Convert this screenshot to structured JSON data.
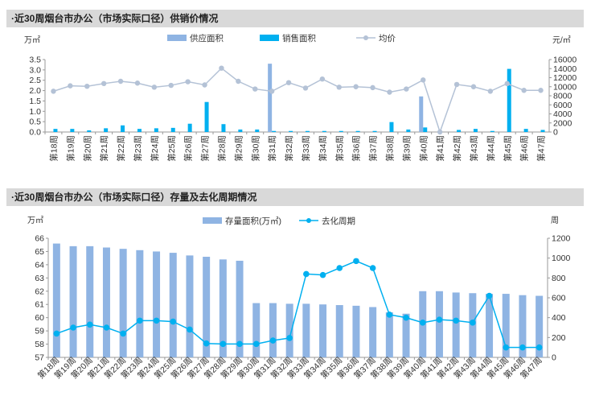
{
  "chart_data": [
    {
      "type": "bar",
      "title": "·近30周烟台市办公（市场实际口径）供销价情况",
      "y_left_label": "万㎡",
      "y_right_label": "元/㎡",
      "ylim_left": [
        0,
        3.5
      ],
      "ylim_right": [
        0,
        16000
      ],
      "yticks_left": [
        "0.0",
        "0.5",
        "1.0",
        "1.5",
        "2.0",
        "2.5",
        "3.0",
        "3.5"
      ],
      "yticks_right": [
        "0",
        "2000",
        "4000",
        "6000",
        "8000",
        "10000",
        "12000",
        "14000",
        "16000"
      ],
      "legend_position": "top",
      "categories": [
        "第18周",
        "第19周",
        "第20周",
        "第21周",
        "第22周",
        "第23周",
        "第24周",
        "第25周",
        "第26周",
        "第27周",
        "第28周",
        "第29周",
        "第30周",
        "第31周",
        "第32周",
        "第33周",
        "第34周",
        "第35周",
        "第36周",
        "第37周",
        "第38周",
        "第39周",
        "第40周",
        "第41周",
        "第42周",
        "第43周",
        "第44周",
        "第45周",
        "第46周",
        "第47周"
      ],
      "series": [
        {
          "name": "供应面积",
          "type": "bar",
          "axis": "left",
          "color": "#8fb4e3",
          "values": [
            0,
            0,
            0,
            0,
            0,
            0,
            0,
            0,
            0,
            0,
            0,
            0,
            0,
            3.3,
            0,
            0,
            0,
            0,
            0,
            0,
            0,
            0,
            1.72,
            0,
            0,
            0,
            0,
            0,
            0,
            0
          ]
        },
        {
          "name": "销售面积",
          "type": "bar",
          "axis": "left",
          "color": "#00b0f0",
          "values": [
            0.15,
            0.15,
            0.08,
            0.18,
            0.32,
            0.15,
            0.18,
            0.2,
            0.4,
            1.45,
            0.38,
            0.12,
            0.12,
            0.05,
            0.05,
            0.05,
            0.05,
            0.05,
            0.05,
            0.05,
            0.48,
            0.12,
            0.22,
            0,
            0.1,
            0.15,
            0.05,
            3.05,
            0.15,
            0.1
          ]
        },
        {
          "name": "均价",
          "type": "line",
          "axis": "right",
          "color": "#b4c2d6",
          "values": [
            9000,
            10200,
            10100,
            10700,
            11200,
            10800,
            9900,
            10300,
            11100,
            10400,
            14100,
            11200,
            9500,
            9000,
            10900,
            9700,
            11700,
            9900,
            10000,
            9800,
            8800,
            9500,
            11500,
            0,
            10500,
            10000,
            9000,
            10700,
            9200,
            9200
          ]
        }
      ]
    },
    {
      "type": "bar",
      "title": "·近30周烟台市办公（市场实际口径）存量及去化周期情况",
      "y_left_label": "万㎡",
      "y_right_label": "周",
      "ylim_left": [
        57,
        66
      ],
      "ylim_right": [
        0,
        1200
      ],
      "yticks_left": [
        "57",
        "58",
        "59",
        "60",
        "61",
        "62",
        "63",
        "64",
        "65",
        "66"
      ],
      "yticks_right": [
        "0",
        "200",
        "400",
        "600",
        "800",
        "1000",
        "1200"
      ],
      "legend_position": "top",
      "categories": [
        "第18周",
        "第19周",
        "第20周",
        "第21周",
        "第22周",
        "第23周",
        "第24周",
        "第25周",
        "第26周",
        "第27周",
        "第28周",
        "第29周",
        "第30周",
        "第31周",
        "第32周",
        "第33周",
        "第34周",
        "第35周",
        "第36周",
        "第37周",
        "第38周",
        "第39周",
        "第40周",
        "第41周",
        "第42周",
        "第43周",
        "第44周",
        "第45周",
        "第46周",
        "第47周"
      ],
      "series": [
        {
          "name": "存量面积(万㎡)",
          "type": "bar",
          "axis": "left",
          "color": "#8fb4e3",
          "values": [
            65.6,
            65.4,
            65.4,
            65.3,
            65.2,
            65.1,
            65.0,
            64.9,
            64.7,
            64.6,
            64.4,
            64.3,
            61.1,
            61.1,
            61.05,
            61.05,
            61.0,
            60.95,
            60.9,
            60.8,
            60.4,
            60.3,
            62.0,
            62.0,
            61.9,
            61.85,
            61.8,
            61.8,
            61.7,
            61.65
          ]
        },
        {
          "name": "去化周期",
          "type": "line",
          "axis": "right",
          "color": "#00b0f0",
          "values": [
            240,
            300,
            330,
            300,
            240,
            370,
            370,
            360,
            280,
            140,
            135,
            135,
            135,
            170,
            195,
            840,
            830,
            900,
            970,
            900,
            430,
            400,
            350,
            380,
            370,
            350,
            620,
            100,
            100,
            100
          ]
        }
      ]
    }
  ]
}
